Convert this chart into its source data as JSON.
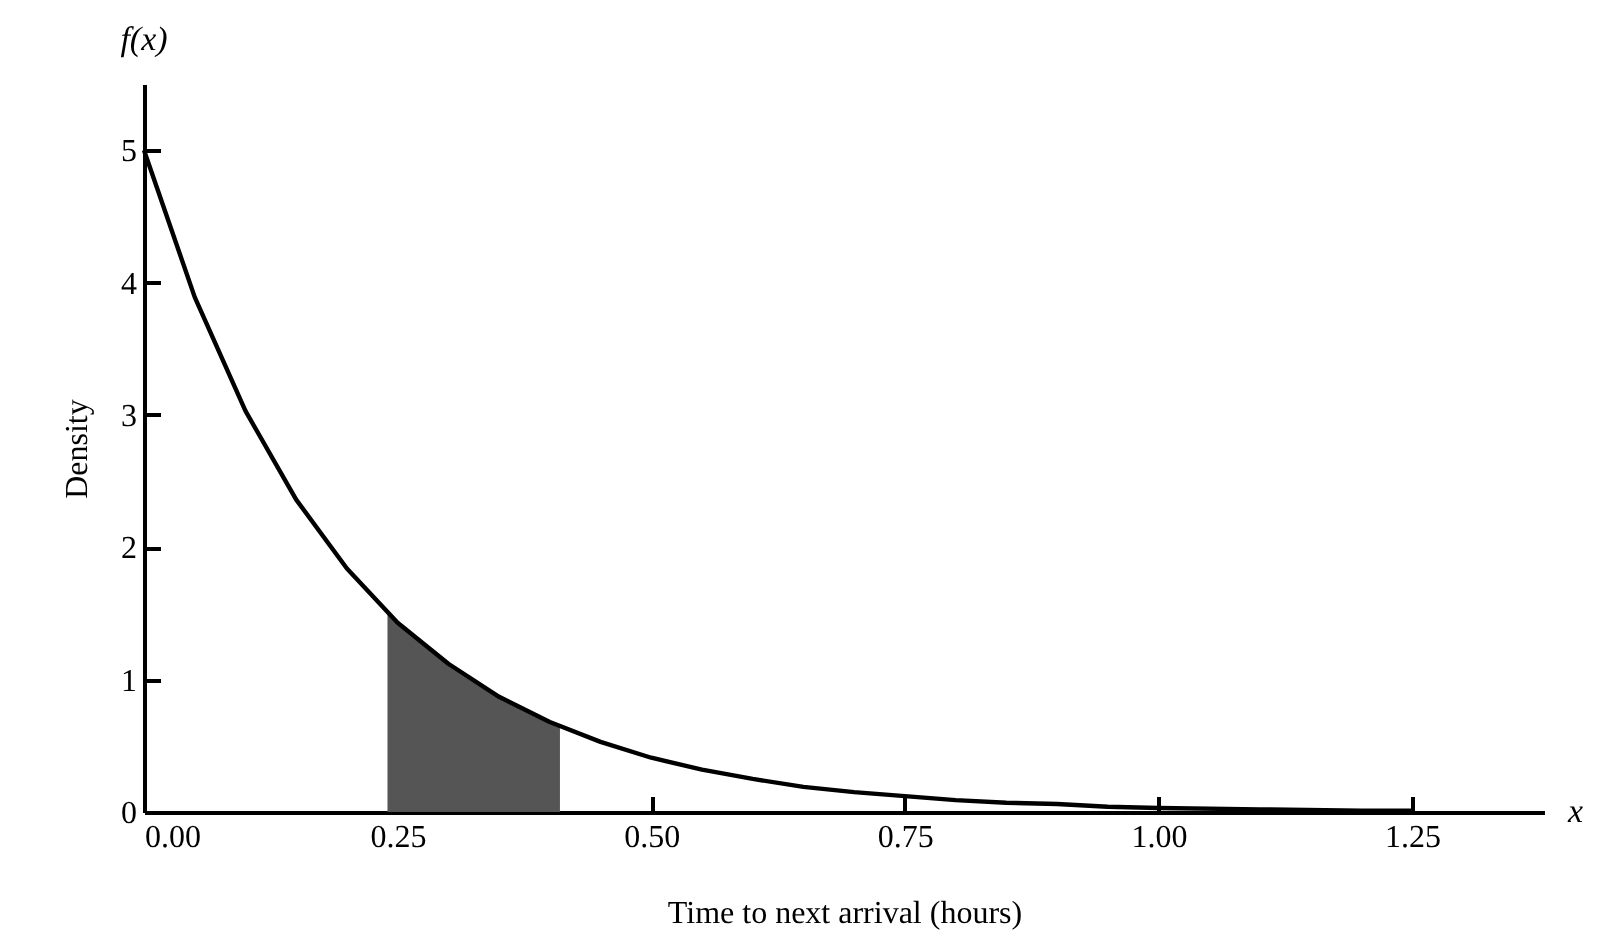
{
  "chart_data": {
    "type": "line",
    "xlabel": "Time to next arrival (hours)",
    "ylabel": "Density",
    "annotations": [
      "f(x)",
      "x"
    ],
    "xlim": [
      0,
      1.38
    ],
    "ylim": [
      0,
      5.5
    ],
    "xticks": [
      {
        "value": 0,
        "label": "0.00"
      },
      {
        "value": 0.25,
        "label": "0.25"
      },
      {
        "value": 0.5,
        "label": "0.50"
      },
      {
        "value": 0.75,
        "label": "0.75"
      },
      {
        "value": 1,
        "label": "1.00"
      },
      {
        "value": 1.25,
        "label": "1.25"
      }
    ],
    "yticks": [
      0,
      1,
      2,
      3,
      4,
      5
    ],
    "grid": false,
    "marker": "none",
    "line_style": "solid",
    "series": [
      {
        "type": "area",
        "color": "#555555",
        "x": [
          0.24,
          0.28,
          0.32,
          0.36,
          0.41
        ],
        "values": [
          1.51,
          1.23,
          1.01,
          0.83,
          0.64
        ]
      },
      {
        "type": "line",
        "color": "#000000",
        "x": [
          0,
          0.05,
          0.1,
          0.15,
          0.2,
          0.25,
          0.3,
          0.35,
          0.4,
          0.45,
          0.5,
          0.55,
          0.6,
          0.65,
          0.7,
          0.75,
          0.8,
          0.85,
          0.9,
          0.95,
          1.0,
          1.1,
          1.2,
          1.25
        ],
        "values": [
          5,
          3.89,
          3.03,
          2.36,
          1.84,
          1.43,
          1.12,
          0.87,
          0.68,
          0.53,
          0.41,
          0.32,
          0.25,
          0.19,
          0.15,
          0.12,
          0.09,
          0.07,
          0.06,
          0.04,
          0.03,
          0.02,
          0.01,
          0.01
        ]
      }
    ]
  }
}
